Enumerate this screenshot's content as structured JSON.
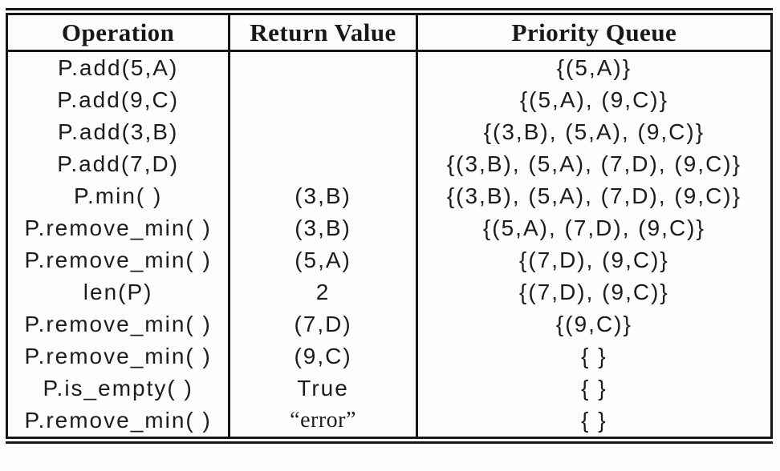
{
  "figure": {
    "type": "table",
    "headers": [
      "Operation",
      "Return Value",
      "Priority Queue"
    ],
    "rows": [
      {
        "operation": "P.add(5,A)",
        "return_value": "",
        "priority_queue": "{(5,A)}"
      },
      {
        "operation": "P.add(9,C)",
        "return_value": "",
        "priority_queue": "{(5,A), (9,C)}"
      },
      {
        "operation": "P.add(3,B)",
        "return_value": "",
        "priority_queue": "{(3,B), (5,A), (9,C)}"
      },
      {
        "operation": "P.add(7,D)",
        "return_value": "",
        "priority_queue": "{(3,B), (5,A), (7,D), (9,C)}"
      },
      {
        "operation": "P.min( )",
        "return_value": "(3,B)",
        "priority_queue": "{(3,B), (5,A), (7,D), (9,C)}"
      },
      {
        "operation": "P.remove_min( )",
        "return_value": "(3,B)",
        "priority_queue": "{(5,A), (7,D), (9,C)}"
      },
      {
        "operation": "P.remove_min( )",
        "return_value": "(5,A)",
        "priority_queue": "{(7,D), (9,C)}"
      },
      {
        "operation": "len(P)",
        "return_value": "2",
        "priority_queue": "{(7,D), (9,C)}"
      },
      {
        "operation": "P.remove_min( )",
        "return_value": "(7,D)",
        "priority_queue": "{(9,C)}"
      },
      {
        "operation": "P.remove_min( )",
        "return_value": "(9,C)",
        "priority_queue": "{ }"
      },
      {
        "operation": "P.is_empty( )",
        "return_value": "True",
        "priority_queue": "{ }"
      },
      {
        "operation": "P.remove_min( )",
        "return_value": "“error”",
        "return_style": "serif",
        "priority_queue": "{ }"
      }
    ]
  },
  "colors": {
    "text": "#1c1c1c",
    "border": "#161616",
    "background": "#fcfcfc"
  }
}
